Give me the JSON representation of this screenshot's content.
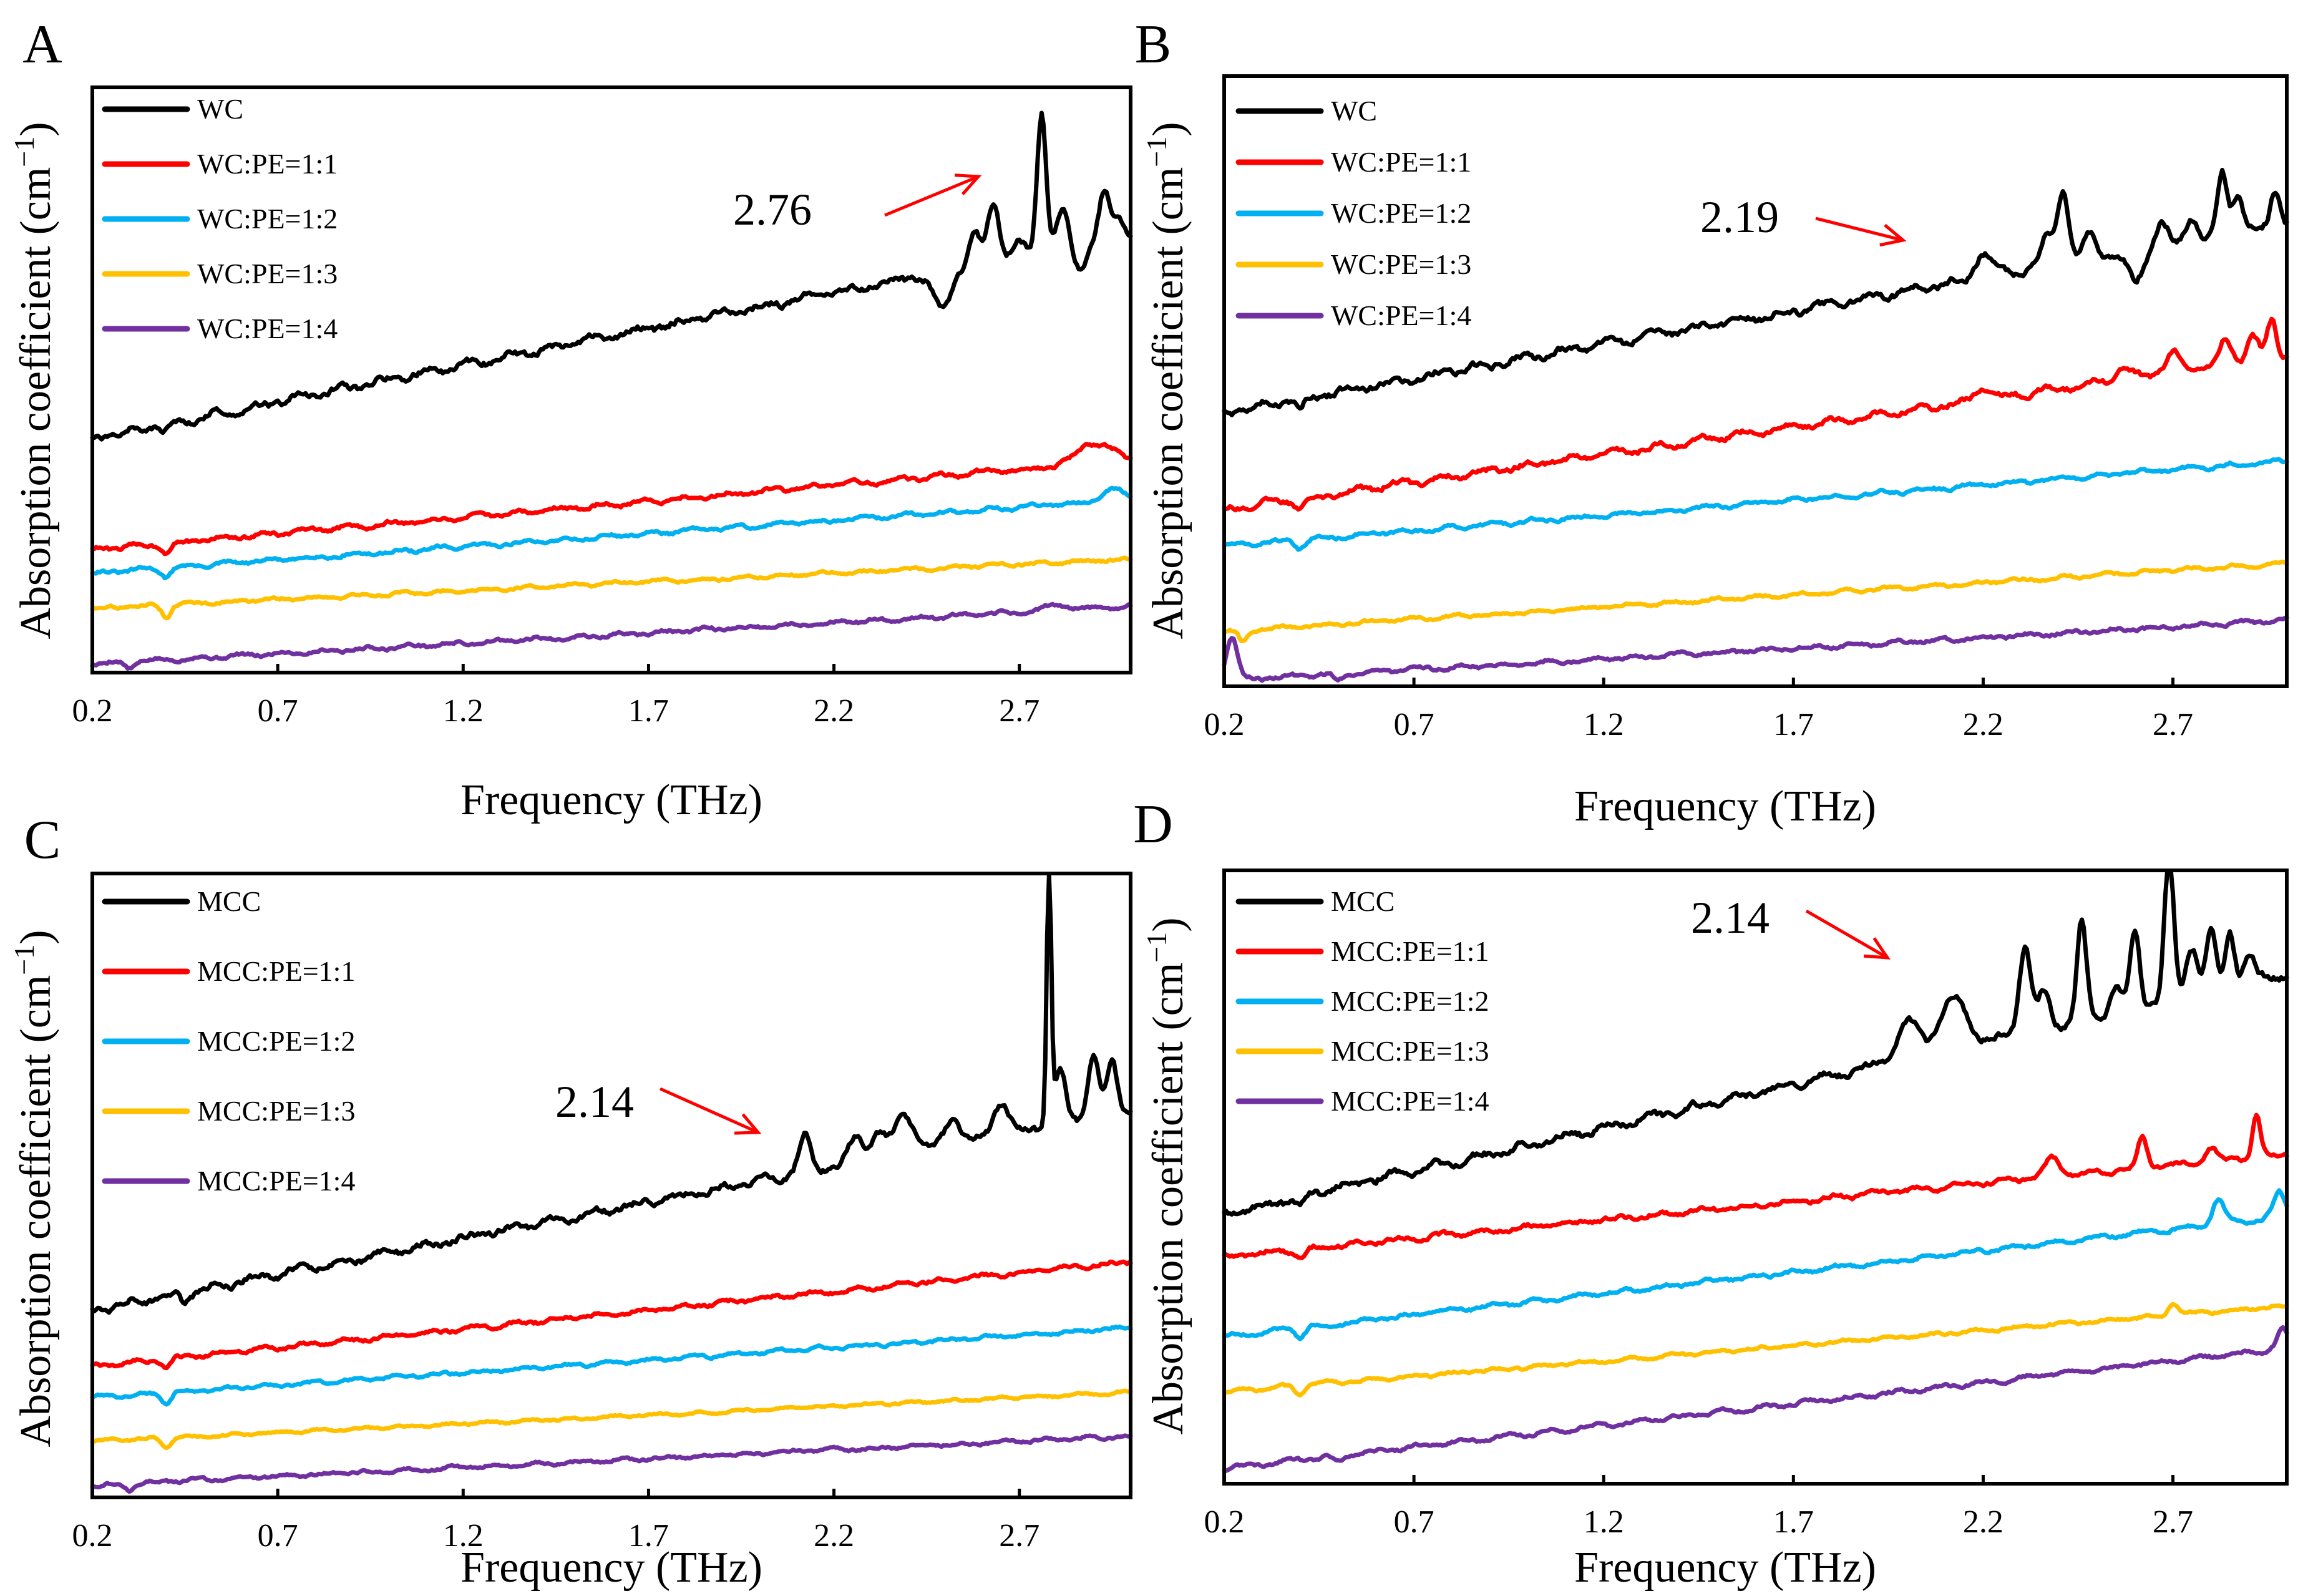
{
  "figure": {
    "axis_xlabel": "Frequency (THz)",
    "axis_ylabel": "Absorption coefficient (cm",
    "axis_ylabel_sup": "−1",
    "axis_ylabel_end": ")"
  },
  "colors": {
    "black": "#000000",
    "red": "#ff0000",
    "blue": "#00b0f0",
    "yellow": "#ffc000",
    "purple": "#7030a0",
    "arrow": "#ff0000"
  },
  "chart_data": [
    {
      "panel": "A",
      "type": "line",
      "title": "",
      "xlabel": "Frequency (THz)",
      "ylabel": "Absorption coefficient (cm−1)",
      "xlim": [
        0.2,
        3.0
      ],
      "ylim": [
        0,
        100
      ],
      "xticks": [
        "0.2",
        "0.7",
        "1.2",
        "1.7",
        "2.2",
        "2.7"
      ],
      "legend_position": "top-left",
      "annotation": {
        "text": "2.76",
        "x": 2.76
      },
      "series": [
        {
          "name": "WC",
          "color": "#000000",
          "base": 40,
          "slope": 12.5,
          "noise": 1.0,
          "peaks": [
            [
              2.49,
              -6,
              0.025
            ],
            [
              2.58,
              5,
              0.015
            ],
            [
              2.63,
              10,
              0.015
            ],
            [
              2.7,
              2,
              0.015
            ],
            [
              2.76,
              24,
              0.012
            ],
            [
              2.82,
              6,
              0.018
            ],
            [
              2.86,
              -4,
              0.02
            ],
            [
              2.93,
              8,
              0.014
            ],
            [
              2.97,
              3,
              0.015
            ]
          ],
          "dip": [
            0.4,
            -1.5
          ]
        },
        {
          "name": "WC:PE=1:1",
          "color": "#ff0000",
          "base": 21,
          "slope": 5.5,
          "noise": 0.6,
          "peaks": [
            [
              2.88,
              3,
              0.03
            ],
            [
              2.94,
              2,
              0.03
            ]
          ],
          "dip": [
            0.4,
            -1.5
          ]
        },
        {
          "name": "WC:PE=1:2",
          "color": "#00b0f0",
          "base": 17,
          "slope": 4.5,
          "noise": 0.5,
          "peaks": [
            [
              2.95,
              2,
              0.03
            ]
          ],
          "dip": [
            0.4,
            -1.5
          ]
        },
        {
          "name": "WC:PE=1:3",
          "color": "#ffc000",
          "base": 11,
          "slope": 3.0,
          "noise": 0.4,
          "peaks": [],
          "dip": [
            0.4,
            -2
          ]
        },
        {
          "name": "WC:PE=1:4",
          "color": "#7030a0",
          "base": 1.5,
          "slope": 3.5,
          "noise": 0.5,
          "peaks": [
            [
              2.8,
              1,
              0.03
            ]
          ],
          "dip": [
            0.3,
            -1
          ]
        }
      ]
    },
    {
      "panel": "B",
      "type": "line",
      "title": "",
      "xlabel": "Frequency (THz)",
      "ylabel": "Absorption coefficient (cm−1)",
      "xlim": [
        0.2,
        3.0
      ],
      "ylim": [
        0,
        100
      ],
      "xticks": [
        "0.2",
        "0.7",
        "1.2",
        "1.7",
        "2.2",
        "2.7"
      ],
      "legend_position": "top-left",
      "annotation": {
        "text": "2.19",
        "x": 2.19
      },
      "series": [
        {
          "name": "WC",
          "color": "#000000",
          "base": 45,
          "slope": 11,
          "noise": 1.0,
          "peaks": [
            [
              2.2,
              4,
              0.02
            ],
            [
              2.37,
              5,
              0.015
            ],
            [
              2.41,
              12,
              0.015
            ],
            [
              2.48,
              4,
              0.015
            ],
            [
              2.6,
              -5,
              0.02
            ],
            [
              2.67,
              4,
              0.015
            ],
            [
              2.75,
              4,
              0.015
            ],
            [
              2.83,
              10,
              0.012
            ],
            [
              2.87,
              6,
              0.015
            ],
            [
              2.97,
              6,
              0.012
            ]
          ],
          "dip": [
            0.4,
            -1.5
          ]
        },
        {
          "name": "WC:PE=1:1",
          "color": "#ff0000",
          "base": 29,
          "slope": 9,
          "noise": 0.8,
          "peaks": [
            [
              2.2,
              2,
              0.02
            ],
            [
              2.57,
              2,
              0.02
            ],
            [
              2.7,
              3,
              0.02
            ],
            [
              2.84,
              4,
              0.015
            ],
            [
              2.91,
              4,
              0.015
            ],
            [
              2.96,
              6,
              0.012
            ]
          ],
          "dip": [
            0.4,
            -1.5
          ]
        },
        {
          "name": "WC:PE=1:2",
          "color": "#00b0f0",
          "base": 23,
          "slope": 5,
          "noise": 0.5,
          "peaks": [],
          "dip": [
            0.4,
            -1.5
          ]
        },
        {
          "name": "WC:PE=1:3",
          "color": "#ffc000",
          "base": 9,
          "slope": 4,
          "noise": 0.4,
          "peaks": [],
          "dip": [
            0.25,
            -2
          ]
        },
        {
          "name": "WC:PE=1:4",
          "color": "#7030a0",
          "base": 1,
          "slope": 3.5,
          "noise": 0.5,
          "peaks": [
            [
              0.22,
              7,
              0.015
            ]
          ],
          "dip": [
            0.5,
            -1
          ]
        }
      ]
    },
    {
      "panel": "C",
      "type": "line",
      "title": "",
      "xlabel": "Frequency (THz)",
      "ylabel": "Absorption coefficient (cm−1)",
      "xlim": [
        0.2,
        3.0
      ],
      "ylim": [
        0,
        100
      ],
      "xticks": [
        "0.2",
        "0.7",
        "1.2",
        "1.7",
        "2.2",
        "2.7"
      ],
      "legend_position": "top-left",
      "annotation": {
        "text": "2.14",
        "x": 2.02
      },
      "series": [
        {
          "name": "MCC",
          "color": "#000000",
          "base": 30,
          "slope": 11.5,
          "noise": 0.9,
          "peaks": [
            [
              2.12,
              6,
              0.015
            ],
            [
              2.26,
              4,
              0.02
            ],
            [
              2.32,
              4,
              0.02
            ],
            [
              2.39,
              6,
              0.025
            ],
            [
              2.52,
              4,
              0.02
            ],
            [
              2.65,
              5,
              0.02
            ],
            [
              2.78,
              42,
              0.006
            ],
            [
              2.81,
              8,
              0.015
            ],
            [
              2.9,
              10,
              0.014
            ],
            [
              2.95,
              8,
              0.014
            ]
          ],
          "dip": [
            0.45,
            -1.5
          ]
        },
        {
          "name": "MCC:PE=1:1",
          "color": "#ff0000",
          "base": 21,
          "slope": 6,
          "noise": 0.5,
          "peaks": [],
          "dip": [
            0.4,
            -1.5
          ]
        },
        {
          "name": "MCC:PE=1:2",
          "color": "#00b0f0",
          "base": 16,
          "slope": 4,
          "noise": 0.4,
          "peaks": [],
          "dip": [
            0.4,
            -1.5
          ]
        },
        {
          "name": "MCC:PE=1:3",
          "color": "#ffc000",
          "base": 9,
          "slope": 2.8,
          "noise": 0.3,
          "peaks": [],
          "dip": [
            0.4,
            -1.5
          ]
        },
        {
          "name": "MCC:PE=1:4",
          "color": "#7030a0",
          "base": 2,
          "slope": 2.8,
          "noise": 0.4,
          "peaks": [],
          "dip": [
            0.3,
            -1
          ]
        }
      ]
    },
    {
      "panel": "D",
      "type": "line",
      "title": "",
      "xlabel": "Frequency (THz)",
      "ylabel": "Absorption coefficient (cm−1)",
      "xlim": [
        0.2,
        3.0
      ],
      "ylim": [
        0,
        100
      ],
      "xticks": [
        "0.2",
        "0.7",
        "1.2",
        "1.7",
        "2.2",
        "2.7"
      ],
      "legend_position": "top-left",
      "annotation": {
        "text": "2.14",
        "x": 2.0
      },
      "series": [
        {
          "name": "MCC",
          "color": "#000000",
          "base": 44,
          "slope": 14,
          "noise": 1.0,
          "peaks": [
            [
              2.0,
              6,
              0.03
            ],
            [
              2.12,
              8,
              0.035
            ],
            [
              2.31,
              14,
              0.015
            ],
            [
              2.36,
              6,
              0.015
            ],
            [
              2.46,
              16,
              0.012
            ],
            [
              2.55,
              4,
              0.015
            ],
            [
              2.6,
              12,
              0.012
            ],
            [
              2.69,
              24,
              0.012
            ],
            [
              2.75,
              8,
              0.015
            ],
            [
              2.8,
              10,
              0.012
            ],
            [
              2.85,
              9,
              0.012
            ],
            [
              2.9,
              4,
              0.015
            ]
          ],
          "dip": [
            0.4,
            -1.5
          ]
        },
        {
          "name": "MCC:PE=1:1",
          "color": "#ff0000",
          "base": 37,
          "slope": 6,
          "noise": 0.6,
          "peaks": [
            [
              2.38,
              3,
              0.02
            ],
            [
              2.62,
              5,
              0.012
            ],
            [
              2.8,
              2,
              0.015
            ],
            [
              2.92,
              7,
              0.01
            ]
          ],
          "dip": [
            0.4,
            -1.5
          ]
        },
        {
          "name": "MCC:PE=1:2",
          "color": "#00b0f0",
          "base": 24,
          "slope": 7,
          "noise": 0.5,
          "peaks": [
            [
              2.82,
              4,
              0.015
            ],
            [
              2.98,
              4,
              0.015
            ]
          ],
          "dip": [
            0.4,
            -1.5
          ]
        },
        {
          "name": "MCC:PE=1:3",
          "color": "#ffc000",
          "base": 15,
          "slope": 5,
          "noise": 0.4,
          "peaks": [
            [
              2.7,
              2,
              0.012
            ]
          ],
          "dip": [
            0.4,
            -1.5
          ]
        },
        {
          "name": "MCC:PE=1:4",
          "color": "#7030a0",
          "base": 2.5,
          "slope": 7,
          "noise": 0.5,
          "peaks": [
            [
              2.99,
              3,
              0.015
            ]
          ],
          "dip": [
            0.5,
            -1
          ]
        }
      ]
    }
  ]
}
